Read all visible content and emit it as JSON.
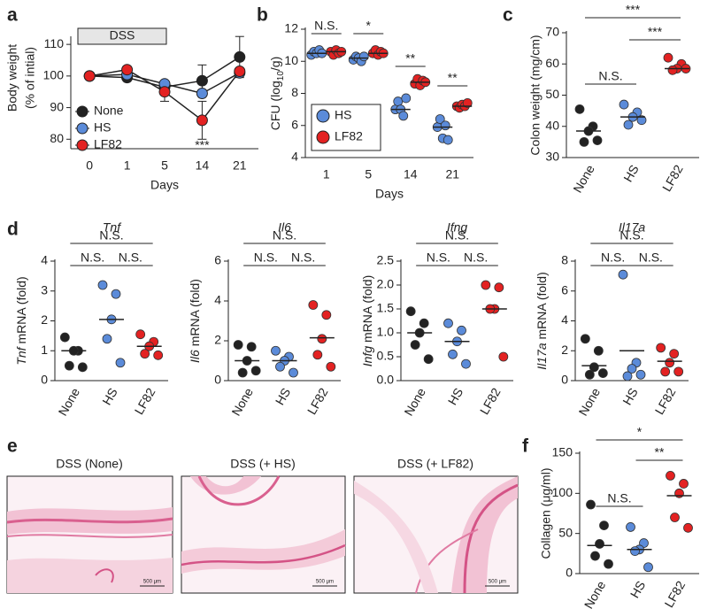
{
  "chart_data": [
    {
      "type": "line",
      "panel": "a",
      "categories": [
        "0",
        "1",
        "5",
        "14",
        "21"
      ],
      "xlabel": "Days",
      "ylabel_lines": [
        "Body weight",
        "(% of intial)"
      ],
      "ylim": [
        77,
        112
      ],
      "yticks": [
        80,
        90,
        100,
        110
      ],
      "shaded_label": "DSS",
      "series": [
        {
          "name": "None",
          "color": "#222222",
          "values": [
            100,
            99.5,
            96.5,
            98.5,
            106
          ],
          "errors": [
            null,
            null,
            null,
            5,
            6.5
          ]
        },
        {
          "name": "HS",
          "color": "#5b8bd9",
          "values": [
            100,
            100.5,
            97.5,
            94.5,
            101
          ],
          "errors": [
            null,
            null,
            null,
            null,
            null
          ]
        },
        {
          "name": "LF82",
          "color": "#e32222",
          "values": [
            100,
            102,
            95,
            86,
            101.5
          ],
          "errors": [
            null,
            null,
            3,
            6,
            null
          ]
        }
      ],
      "annotations": [
        {
          "text": "***",
          "category": "14"
        }
      ]
    },
    {
      "type": "dot_groups",
      "panel": "b",
      "categories": [
        "1",
        "5",
        "14",
        "21"
      ],
      "xlabel": "Days",
      "ylabel_parts": [
        {
          "text": "CFU (log"
        },
        {
          "text": "10",
          "style": "sub"
        },
        {
          "text": "/g)"
        }
      ],
      "ylim": [
        4,
        12
      ],
      "yticks": [
        4,
        6,
        8,
        10,
        12
      ],
      "series": [
        {
          "name": "HS",
          "color": "#5b8bd9",
          "points": [
            [
              10.4,
              10.6,
              10.5,
              10.7,
              10.5
            ],
            [
              10.1,
              10.3,
              10.2,
              10.0,
              10.3
            ],
            [
              7.0,
              7.5,
              7.0,
              6.6,
              7.7
            ],
            [
              5.9,
              6.4,
              5.2,
              6.0,
              5.1
            ]
          ],
          "medians": [
            10.5,
            10.2,
            7.0,
            5.9
          ]
        },
        {
          "name": "LF82",
          "color": "#e32222",
          "points": [
            [
              10.6,
              10.4,
              10.7,
              10.5,
              10.6
            ],
            [
              10.5,
              10.7,
              10.4,
              10.6,
              10.5
            ],
            [
              8.6,
              8.9,
              8.5,
              8.8,
              8.7
            ],
            [
              7.2,
              7.1,
              7.3,
              7.2,
              7.4
            ]
          ],
          "medians": [
            10.6,
            10.5,
            8.7,
            7.2
          ]
        }
      ],
      "significance": [
        "N.S.",
        "*",
        "**",
        "**"
      ]
    },
    {
      "type": "dot",
      "panel": "c",
      "categories": [
        "None",
        "HS",
        "LF82"
      ],
      "colors": [
        "#222222",
        "#5b8bd9",
        "#e32222"
      ],
      "ylabel": "Colon weight (mg/cm)",
      "ylim": [
        30,
        70
      ],
      "yticks": [
        30,
        40,
        50,
        60,
        70
      ],
      "points": [
        [
          45.5,
          40,
          38.5,
          35,
          35.5
        ],
        [
          47,
          44.5,
          43,
          40.5,
          42
        ],
        [
          62,
          60,
          58.5,
          58,
          58.5
        ]
      ],
      "medians": [
        38.5,
        43,
        58.5
      ],
      "comparisons": [
        {
          "pair": [
            "None",
            "LF82"
          ],
          "label": "***"
        },
        {
          "pair": [
            "HS",
            "LF82"
          ],
          "label": "***"
        },
        {
          "pair": [
            "None",
            "HS"
          ],
          "label": "N.S."
        }
      ]
    },
    {
      "type": "dot",
      "panel": "d",
      "title": "Tnf",
      "categories": [
        "None",
        "HS",
        "LF82"
      ],
      "colors": [
        "#222222",
        "#5b8bd9",
        "#e32222"
      ],
      "ylabel_parts": [
        {
          "text": "Tnf",
          "style": "italic"
        },
        {
          "text": " mRNA (fold)"
        }
      ],
      "ylim": [
        0,
        4
      ],
      "yticks": [
        0,
        1,
        2,
        3,
        4
      ],
      "points": [
        [
          1.45,
          1.0,
          1.0,
          0.5,
          0.45
        ],
        [
          3.2,
          2.9,
          2.05,
          1.4,
          0.6
        ],
        [
          1.55,
          1.3,
          1.15,
          0.9,
          0.85
        ]
      ],
      "means": [
        1.0,
        2.05,
        1.15
      ],
      "comparisons": [
        {
          "pair": [
            "None",
            "LF82"
          ],
          "label": "N.S."
        },
        {
          "pair": [
            "None",
            "HS"
          ],
          "label": "N.S."
        },
        {
          "pair": [
            "HS",
            "LF82"
          ],
          "label": "N.S."
        }
      ]
    },
    {
      "type": "dot",
      "title": "Il6",
      "categories": [
        "None",
        "HS",
        "LF82"
      ],
      "colors": [
        "#222222",
        "#5b8bd9",
        "#e32222"
      ],
      "ylabel_parts": [
        {
          "text": "Il6",
          "style": "italic"
        },
        {
          "text": " mRNA (fold)"
        }
      ],
      "ylim": [
        0,
        6
      ],
      "yticks": [
        0,
        2,
        4,
        6
      ],
      "points": [
        [
          1.8,
          1.7,
          1.0,
          0.4,
          0.5
        ],
        [
          1.5,
          1.2,
          1.0,
          0.7,
          0.4
        ],
        [
          3.8,
          3.3,
          2.1,
          1.3,
          0.7
        ]
      ],
      "means": [
        1.0,
        1.0,
        2.15
      ],
      "comparisons": [
        {
          "pair": [
            "None",
            "LF82"
          ],
          "label": "N.S."
        },
        {
          "pair": [
            "None",
            "HS"
          ],
          "label": "N.S."
        },
        {
          "pair": [
            "HS",
            "LF82"
          ],
          "label": "N.S."
        }
      ]
    },
    {
      "type": "dot",
      "title": "Ifng",
      "categories": [
        "None",
        "HS",
        "LF82"
      ],
      "colors": [
        "#222222",
        "#5b8bd9",
        "#e32222"
      ],
      "ylabel_parts": [
        {
          "text": "Infg",
          "style": "italic"
        },
        {
          "text": " mRNA (fold)"
        }
      ],
      "ylim": [
        0,
        2.5
      ],
      "yticks": [
        {
          "value": 0,
          "label": "0.0"
        },
        0.5,
        {
          "value": 1,
          "label": "1.0"
        },
        1.5,
        {
          "value": 2,
          "label": "2.0"
        },
        2.5
      ],
      "points": [
        [
          1.45,
          1.2,
          1.0,
          0.75,
          0.45
        ],
        [
          1.2,
          1.05,
          0.82,
          0.55,
          0.35
        ],
        [
          2.0,
          1.95,
          1.5,
          1.5,
          0.5
        ]
      ],
      "means": [
        1.0,
        0.82,
        1.5
      ],
      "comparisons": [
        {
          "pair": [
            "None",
            "LF82"
          ],
          "label": "N.S."
        },
        {
          "pair": [
            "None",
            "HS"
          ],
          "label": "N.S."
        },
        {
          "pair": [
            "HS",
            "LF82"
          ],
          "label": "N.S."
        }
      ]
    },
    {
      "type": "dot",
      "title": "Il17a",
      "categories": [
        "None",
        "HS",
        "LF82"
      ],
      "colors": [
        "#222222",
        "#5b8bd9",
        "#e32222"
      ],
      "ylabel_parts": [
        {
          "text": "Il17a",
          "style": "italic"
        },
        {
          "text": " mRNA (fold)"
        }
      ],
      "ylim": [
        0,
        8
      ],
      "yticks": [
        0,
        2,
        4,
        6,
        8
      ],
      "points": [
        [
          2.8,
          2.0,
          0.9,
          0.4,
          0.5
        ],
        [
          7.1,
          1.2,
          0.8,
          0.3,
          0.4
        ],
        [
          2.2,
          1.8,
          1.2,
          0.6,
          0.6
        ]
      ],
      "means": [
        1.0,
        2.0,
        1.3
      ],
      "comparisons": [
        {
          "pair": [
            "None",
            "LF82"
          ],
          "label": "N.S."
        },
        {
          "pair": [
            "None",
            "HS"
          ],
          "label": "N.S."
        },
        {
          "pair": [
            "HS",
            "LF82"
          ],
          "label": "N.S."
        }
      ]
    },
    {
      "type": "dot",
      "panel": "f",
      "categories": [
        "None",
        "HS",
        "LF82"
      ],
      "colors": [
        "#222222",
        "#5b8bd9",
        "#e32222"
      ],
      "ylabel": "Collagen (μg/ml)",
      "ylim": [
        0,
        150
      ],
      "yticks": [
        0,
        50,
        100,
        150
      ],
      "points": [
        [
          86,
          60,
          37,
          22,
          12
        ],
        [
          58,
          38,
          30,
          28,
          8
        ],
        [
          122,
          112,
          100,
          70,
          57
        ]
      ],
      "means": [
        35,
        30,
        97
      ],
      "comparisons": [
        {
          "pair": [
            "None",
            "LF82"
          ],
          "label": "*"
        },
        {
          "pair": [
            "HS",
            "LF82"
          ],
          "label": "**"
        },
        {
          "pair": [
            "None",
            "HS"
          ],
          "label": "N.S."
        }
      ]
    }
  ],
  "histology": {
    "panel": "e",
    "images": [
      {
        "title": "DSS (None)",
        "scale_bar": "500 μm"
      },
      {
        "title": "DSS (+ HS)",
        "scale_bar": "500 μm"
      },
      {
        "title": "DSS (+ LF82)",
        "scale_bar": "500 μm"
      }
    ]
  }
}
